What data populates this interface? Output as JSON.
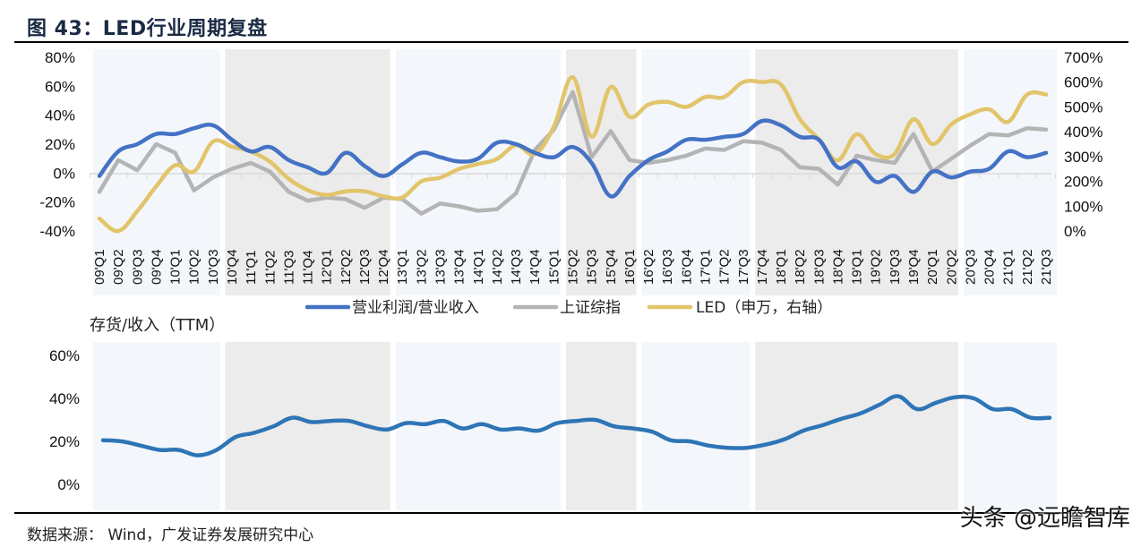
{
  "figure": {
    "title": "图 43：LED行业周期复盘",
    "source": "数据来源： Wind，广发证券发展研究中心",
    "watermark": "头条 @远瞻智库"
  },
  "colors": {
    "series_blue": "#4472c4",
    "series_gray": "#b4b4b4",
    "series_gold": "#e2c46a",
    "inventory": "#2e75b6",
    "band_light": "#f3f7fb",
    "band_gray": "#ececec"
  },
  "chart_data": [
    {
      "type": "line",
      "title": "",
      "categories": [
        "09'Q1",
        "09'Q2",
        "09'Q3",
        "09'Q4",
        "10'Q1",
        "10'Q2",
        "10'Q3",
        "10'Q4",
        "11'Q1",
        "11'Q2",
        "11'Q3",
        "11'Q4",
        "12'Q1",
        "12'Q2",
        "12'Q3",
        "12'Q4",
        "13'Q1",
        "13'Q2",
        "13'Q3",
        "13'Q4",
        "14'Q1",
        "14'Q2",
        "14'Q3",
        "14'Q4",
        "15'Q1",
        "15'Q2",
        "15'Q3",
        "15'Q4",
        "16'Q1",
        "16'Q2",
        "16'Q3",
        "16'Q4",
        "17'Q1",
        "17'Q2",
        "17'Q3",
        "17'Q4",
        "18'Q1",
        "18'Q2",
        "18'Q3",
        "18'Q4",
        "19'Q1",
        "19'Q2",
        "19'Q3",
        "19'Q4",
        "20'Q1",
        "20'Q2",
        "20'Q3",
        "20'Q4",
        "21'Q1",
        "21'Q2",
        "21'Q3"
      ],
      "left_axis": {
        "ylim": [
          -40,
          80
        ],
        "ticks": [
          "80%",
          "60%",
          "40%",
          "20%",
          "0%",
          "-20%",
          "-40%"
        ],
        "tick_values": [
          80,
          60,
          40,
          20,
          0,
          -20,
          -40
        ]
      },
      "right_axis": {
        "ylim": [
          0,
          700
        ],
        "ticks": [
          "700%",
          "600%",
          "500%",
          "400%",
          "300%",
          "200%",
          "100%",
          "0%"
        ],
        "tick_values": [
          700,
          600,
          500,
          400,
          300,
          200,
          100,
          0
        ]
      },
      "shaded_periods": [
        {
          "from": "09'Q1",
          "to": "10'Q3",
          "shade": "light"
        },
        {
          "from": "10'Q4",
          "to": "12'Q4",
          "shade": "gray"
        },
        {
          "from": "13'Q1",
          "to": "15'Q1",
          "shade": "light"
        },
        {
          "from": "15'Q2",
          "to": "16'Q1",
          "shade": "gray"
        },
        {
          "from": "16'Q2",
          "to": "17'Q3",
          "shade": "light"
        },
        {
          "from": "17'Q4",
          "to": "20'Q2",
          "shade": "gray"
        },
        {
          "from": "20'Q3",
          "to": "21'Q3",
          "shade": "light"
        }
      ],
      "legend_position": "bottom",
      "series": [
        {
          "name": "营业利润/营业收入",
          "axis": "left",
          "color_key": "series_blue",
          "values": [
            -2,
            15,
            20,
            27,
            27,
            31,
            33,
            23,
            15,
            18,
            9,
            4,
            0,
            14,
            5,
            -2,
            6,
            14,
            11,
            8,
            10,
            21,
            20,
            14,
            11,
            18,
            7,
            -16,
            -2,
            9,
            15,
            23,
            23,
            25,
            27,
            36,
            33,
            25,
            23,
            4,
            8,
            -6,
            -2,
            -13,
            1,
            -3,
            1,
            3,
            15,
            11,
            14
          ]
        },
        {
          "name": "上证综指",
          "axis": "left",
          "color_key": "series_gray",
          "values": [
            -13,
            9,
            2,
            20,
            14,
            -12,
            -3,
            3,
            7,
            1,
            -13,
            -19,
            -17,
            -18,
            -24,
            -17,
            -18,
            -28,
            -21,
            -23,
            -26,
            -25,
            -14,
            16,
            30,
            56,
            11,
            29,
            9,
            7,
            9,
            12,
            17,
            16,
            22,
            21,
            16,
            4,
            3,
            -8,
            12,
            9,
            7,
            27,
            1,
            10,
            19,
            27,
            26,
            31,
            30
          ]
        },
        {
          "name": "LED（申万，右轴）",
          "axis": "right",
          "color_key": "series_gold",
          "values": [
            50,
            0,
            80,
            180,
            265,
            240,
            360,
            340,
            320,
            280,
            210,
            165,
            145,
            160,
            160,
            140,
            135,
            200,
            215,
            250,
            270,
            290,
            345,
            310,
            420,
            620,
            380,
            580,
            460,
            510,
            520,
            500,
            540,
            540,
            600,
            600,
            590,
            450,
            370,
            285,
            390,
            310,
            310,
            450,
            350,
            430,
            470,
            490,
            440,
            550,
            550
          ]
        }
      ],
      "xlabel": "",
      "ylabel": ""
    },
    {
      "type": "line",
      "title": "存货/收入（TTM）",
      "ylim": [
        0,
        60
      ],
      "ticks": [
        "60%",
        "40%",
        "20%",
        "0%"
      ],
      "tick_values": [
        60,
        40,
        20,
        0
      ],
      "series": [
        {
          "name": "存货/收入（TTM）",
          "color_key": "inventory",
          "values": [
            20.5,
            20,
            18,
            16,
            16,
            13.5,
            16,
            22,
            24,
            27,
            31,
            29,
            29.5,
            29.5,
            27,
            25.5,
            28.5,
            28,
            29.5,
            26,
            28,
            25.5,
            26,
            25,
            28.5,
            29.5,
            30,
            27,
            26,
            24.5,
            20.5,
            20,
            18,
            17,
            17,
            18.5,
            21,
            25,
            27.5,
            30.5,
            33,
            37,
            41,
            35,
            38,
            40.5,
            40,
            35,
            35,
            31,
            31
          ]
        }
      ],
      "xlabel": "",
      "ylabel": ""
    }
  ]
}
